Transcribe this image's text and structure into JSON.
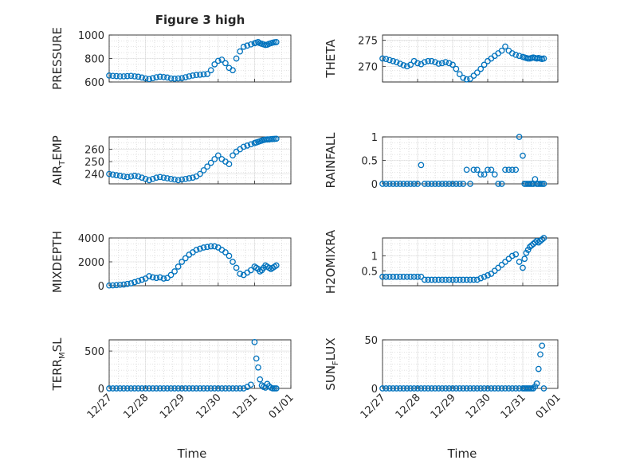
{
  "figure_title": "Figure 3 high",
  "colors": {
    "marker": "#0072BD",
    "frame": "#262626",
    "background": "#ffffff"
  },
  "x_ticks": [
    "12/27",
    "12/28",
    "12/29",
    "12/30",
    "12/31",
    "01/01"
  ],
  "x_label": "Time",
  "chart_data": [
    {
      "type": "scatter",
      "title": "Figure 3 high",
      "ylabel": "PRESSURE",
      "ylim": [
        600,
        1000
      ],
      "yticks": [
        "600",
        "800",
        "1000"
      ],
      "ytick_values": [
        600,
        800,
        1000
      ],
      "xlim": [
        0,
        5
      ],
      "xticks": [
        "12/27",
        "12/28",
        "12/29",
        "12/30",
        "12/31",
        "01/01"
      ],
      "grid": "on",
      "x": [
        0.0,
        0.1,
        0.2,
        0.3,
        0.4,
        0.5,
        0.6,
        0.7,
        0.8,
        0.9,
        1.0,
        1.1,
        1.2,
        1.3,
        1.4,
        1.5,
        1.6,
        1.7,
        1.8,
        1.9,
        2.0,
        2.1,
        2.2,
        2.3,
        2.4,
        2.5,
        2.6,
        2.7,
        2.8,
        2.9,
        3.0,
        3.1,
        3.2,
        3.3,
        3.4,
        3.5,
        3.6,
        3.7,
        3.8,
        3.9,
        4.0,
        4.05,
        4.1,
        4.15,
        4.2,
        4.25,
        4.3,
        4.35,
        4.4,
        4.45,
        4.5,
        4.55,
        4.6
      ],
      "y": [
        655,
        652,
        650,
        648,
        648,
        650,
        652,
        648,
        645,
        638,
        630,
        625,
        632,
        640,
        645,
        642,
        638,
        630,
        628,
        630,
        632,
        640,
        648,
        655,
        660,
        662,
        665,
        668,
        700,
        750,
        780,
        790,
        760,
        720,
        700,
        800,
        860,
        900,
        910,
        920,
        930,
        935,
        940,
        930,
        925,
        920,
        915,
        918,
        925,
        930,
        935,
        938,
        940
      ],
      "name_visible": false
    },
    {
      "type": "scatter",
      "ylabel": "THETA",
      "ylim": [
        267,
        276
      ],
      "yticks": [
        "270",
        "275"
      ],
      "ytick_values": [
        270,
        275
      ],
      "xlim": [
        0,
        5
      ],
      "xticks": [
        "12/27",
        "12/28",
        "12/29",
        "12/30",
        "12/31",
        "01/01"
      ],
      "grid": "on",
      "x": [
        0.0,
        0.1,
        0.2,
        0.3,
        0.4,
        0.5,
        0.6,
        0.7,
        0.8,
        0.9,
        1.0,
        1.1,
        1.2,
        1.3,
        1.4,
        1.5,
        1.6,
        1.7,
        1.8,
        1.9,
        2.0,
        2.1,
        2.2,
        2.3,
        2.4,
        2.5,
        2.6,
        2.7,
        2.8,
        2.9,
        3.0,
        3.1,
        3.2,
        3.3,
        3.4,
        3.5,
        3.6,
        3.7,
        3.8,
        3.9,
        4.0,
        4.05,
        4.1,
        4.15,
        4.2,
        4.25,
        4.3,
        4.35,
        4.4,
        4.45,
        4.5,
        4.55,
        4.6
      ],
      "y": [
        271.5,
        271.4,
        271.2,
        271.0,
        270.8,
        270.5,
        270.2,
        270.0,
        270.3,
        271.0,
        270.6,
        270.4,
        270.8,
        271.0,
        271.0,
        270.8,
        270.5,
        270.6,
        270.8,
        270.6,
        270.3,
        269.5,
        268.5,
        267.8,
        267.5,
        267.6,
        268.2,
        268.8,
        269.5,
        270.3,
        271.0,
        271.5,
        272.0,
        272.5,
        273.0,
        273.8,
        273.0,
        272.5,
        272.2,
        272.0,
        271.8,
        271.7,
        271.6,
        271.5,
        271.5,
        271.6,
        271.7,
        271.6,
        271.5,
        271.6,
        271.5,
        271.4,
        271.5
      ],
      "name_visible": false
    },
    {
      "type": "scatter",
      "ylabel": "AIR_TEMP",
      "ylim": [
        232,
        270
      ],
      "yticks": [
        "240",
        "250",
        "260"
      ],
      "ytick_values": [
        240,
        250,
        260
      ],
      "xlim": [
        0,
        5
      ],
      "xticks": [
        "12/27",
        "12/28",
        "12/29",
        "12/30",
        "12/31",
        "01/01"
      ],
      "grid": "on",
      "x": [
        0.0,
        0.1,
        0.2,
        0.3,
        0.4,
        0.5,
        0.6,
        0.7,
        0.8,
        0.9,
        1.0,
        1.1,
        1.2,
        1.3,
        1.4,
        1.5,
        1.6,
        1.7,
        1.8,
        1.9,
        2.0,
        2.1,
        2.2,
        2.3,
        2.4,
        2.5,
        2.6,
        2.7,
        2.8,
        2.9,
        3.0,
        3.1,
        3.2,
        3.3,
        3.4,
        3.5,
        3.6,
        3.7,
        3.8,
        3.9,
        4.0,
        4.05,
        4.1,
        4.15,
        4.2,
        4.25,
        4.3,
        4.35,
        4.4,
        4.45,
        4.5,
        4.55,
        4.6
      ],
      "y": [
        240,
        239.5,
        239,
        238.5,
        238,
        237.5,
        238,
        238.5,
        238,
        237,
        236,
        235,
        236,
        237,
        237.5,
        237,
        236.5,
        236,
        235.5,
        235,
        235.5,
        236,
        236.5,
        237,
        238,
        240,
        243,
        246,
        249,
        252,
        255,
        252,
        250,
        248,
        255,
        258,
        260,
        262,
        263,
        264,
        265,
        265.5,
        266,
        266.5,
        267,
        267.5,
        267.8,
        268,
        268,
        268.2,
        268.3,
        268.4,
        268.5
      ],
      "name_visible": false
    },
    {
      "type": "scatter",
      "ylabel": "RAINFALL",
      "ylim": [
        0,
        1
      ],
      "yticks": [
        "0",
        "0.5",
        "1"
      ],
      "ytick_values": [
        0,
        0.5,
        1
      ],
      "xlim": [
        0,
        5
      ],
      "xticks": [
        "12/27",
        "12/28",
        "12/29",
        "12/30",
        "12/31",
        "01/01"
      ],
      "grid": "on",
      "x": [
        0.0,
        0.1,
        0.2,
        0.3,
        0.4,
        0.5,
        0.6,
        0.7,
        0.8,
        0.9,
        1.0,
        1.1,
        1.2,
        1.3,
        1.4,
        1.5,
        1.6,
        1.7,
        1.8,
        1.9,
        2.0,
        2.1,
        2.2,
        2.3,
        2.4,
        2.5,
        2.6,
        2.7,
        2.8,
        2.9,
        3.0,
        3.1,
        3.2,
        3.3,
        3.4,
        3.5,
        3.6,
        3.7,
        3.8,
        3.9,
        4.0,
        4.05,
        4.1,
        4.15,
        4.2,
        4.25,
        4.3,
        4.35,
        4.4,
        4.45,
        4.5,
        4.55,
        4.6
      ],
      "y": [
        0,
        0,
        0,
        0,
        0,
        0,
        0,
        0,
        0,
        0,
        0,
        0.4,
        0,
        0,
        0,
        0,
        0,
        0,
        0,
        0,
        0,
        0,
        0,
        0,
        0.3,
        0,
        0.3,
        0.3,
        0.2,
        0.2,
        0.3,
        0.3,
        0.2,
        0,
        0,
        0.3,
        0.3,
        0.3,
        0.3,
        1.0,
        0.6,
        0,
        0,
        0,
        0,
        0,
        0,
        0.1,
        0,
        0,
        0,
        0,
        0
      ],
      "name_visible": false
    },
    {
      "type": "scatter",
      "ylabel": "MIXDEPTH",
      "ylim": [
        0,
        4000
      ],
      "yticks": [
        "0",
        "2000",
        "4000"
      ],
      "ytick_values": [
        0,
        2000,
        4000
      ],
      "xlim": [
        0,
        5
      ],
      "xticks": [
        "12/27",
        "12/28",
        "12/29",
        "12/30",
        "12/31",
        "01/01"
      ],
      "grid": "on",
      "x": [
        0.0,
        0.1,
        0.2,
        0.3,
        0.4,
        0.5,
        0.6,
        0.7,
        0.8,
        0.9,
        1.0,
        1.1,
        1.2,
        1.3,
        1.4,
        1.5,
        1.6,
        1.7,
        1.8,
        1.9,
        2.0,
        2.1,
        2.2,
        2.3,
        2.4,
        2.5,
        2.6,
        2.7,
        2.8,
        2.9,
        3.0,
        3.1,
        3.2,
        3.3,
        3.4,
        3.5,
        3.6,
        3.7,
        3.8,
        3.9,
        4.0,
        4.05,
        4.1,
        4.15,
        4.2,
        4.25,
        4.3,
        4.35,
        4.4,
        4.45,
        4.5,
        4.55,
        4.6
      ],
      "y": [
        20,
        30,
        50,
        80,
        100,
        150,
        200,
        300,
        400,
        500,
        600,
        800,
        700,
        650,
        700,
        600,
        650,
        900,
        1200,
        1600,
        2000,
        2300,
        2600,
        2800,
        3000,
        3100,
        3200,
        3250,
        3300,
        3300,
        3200,
        3000,
        2800,
        2500,
        2000,
        1500,
        1000,
        900,
        1100,
        1300,
        1600,
        1500,
        1400,
        1200,
        1300,
        1500,
        1700,
        1600,
        1500,
        1400,
        1500,
        1600,
        1700
      ],
      "name_visible": false
    },
    {
      "type": "scatter",
      "ylabel": "H2OMIXRA",
      "ylim": [
        0,
        1.6
      ],
      "yticks": [
        "0.5",
        "1"
      ],
      "ytick_values": [
        0.5,
        1
      ],
      "xlim": [
        0,
        5
      ],
      "xticks": [
        "12/27",
        "12/28",
        "12/29",
        "12/30",
        "12/31",
        "01/01"
      ],
      "grid": "on",
      "x": [
        0.0,
        0.1,
        0.2,
        0.3,
        0.4,
        0.5,
        0.6,
        0.7,
        0.8,
        0.9,
        1.0,
        1.1,
        1.2,
        1.3,
        1.4,
        1.5,
        1.6,
        1.7,
        1.8,
        1.9,
        2.0,
        2.1,
        2.2,
        2.3,
        2.4,
        2.5,
        2.6,
        2.7,
        2.8,
        2.9,
        3.0,
        3.1,
        3.2,
        3.3,
        3.4,
        3.5,
        3.6,
        3.7,
        3.8,
        3.9,
        4.0,
        4.05,
        4.1,
        4.15,
        4.2,
        4.25,
        4.3,
        4.35,
        4.4,
        4.45,
        4.5,
        4.55,
        4.6
      ],
      "y": [
        0.3,
        0.3,
        0.3,
        0.3,
        0.3,
        0.3,
        0.3,
        0.3,
        0.3,
        0.3,
        0.3,
        0.3,
        0.2,
        0.2,
        0.2,
        0.2,
        0.2,
        0.2,
        0.2,
        0.2,
        0.2,
        0.2,
        0.2,
        0.2,
        0.2,
        0.2,
        0.2,
        0.2,
        0.25,
        0.3,
        0.35,
        0.4,
        0.5,
        0.6,
        0.7,
        0.8,
        0.9,
        1.0,
        1.05,
        0.8,
        0.6,
        0.9,
        1.1,
        1.2,
        1.3,
        1.35,
        1.4,
        1.45,
        1.5,
        1.45,
        1.5,
        1.55,
        1.6
      ],
      "name_visible": false
    },
    {
      "type": "scatter",
      "ylabel": "TERR_MSL",
      "ylim": [
        0,
        650
      ],
      "yticks": [
        "0",
        "500"
      ],
      "ytick_values": [
        0,
        500
      ],
      "xlim": [
        0,
        5
      ],
      "xticks": [
        "12/27",
        "12/28",
        "12/29",
        "12/30",
        "12/31",
        "01/01"
      ],
      "grid": "on",
      "x": [
        0.0,
        0.1,
        0.2,
        0.3,
        0.4,
        0.5,
        0.6,
        0.7,
        0.8,
        0.9,
        1.0,
        1.1,
        1.2,
        1.3,
        1.4,
        1.5,
        1.6,
        1.7,
        1.8,
        1.9,
        2.0,
        2.1,
        2.2,
        2.3,
        2.4,
        2.5,
        2.6,
        2.7,
        2.8,
        2.9,
        3.0,
        3.1,
        3.2,
        3.3,
        3.4,
        3.5,
        3.6,
        3.7,
        3.8,
        3.9,
        4.0,
        4.05,
        4.1,
        4.15,
        4.2,
        4.25,
        4.3,
        4.35,
        4.4,
        4.45,
        4.5,
        4.55,
        4.6
      ],
      "y": [
        0,
        0,
        0,
        0,
        0,
        0,
        0,
        0,
        0,
        0,
        0,
        0,
        0,
        0,
        0,
        0,
        0,
        0,
        0,
        0,
        0,
        0,
        0,
        0,
        0,
        0,
        0,
        0,
        0,
        0,
        0,
        0,
        0,
        0,
        0,
        0,
        0,
        0,
        20,
        50,
        620,
        400,
        280,
        120,
        40,
        20,
        10,
        60,
        30,
        10,
        0,
        0,
        0
      ],
      "name_visible": false
    },
    {
      "type": "scatter",
      "ylabel": "SUN_FLUX",
      "ylim": [
        0,
        50
      ],
      "yticks": [
        "0",
        "50"
      ],
      "ytick_values": [
        0,
        50
      ],
      "xlim": [
        0,
        5
      ],
      "xticks": [
        "12/27",
        "12/28",
        "12/29",
        "12/30",
        "12/31",
        "01/01"
      ],
      "grid": "on",
      "x": [
        0.0,
        0.1,
        0.2,
        0.3,
        0.4,
        0.5,
        0.6,
        0.7,
        0.8,
        0.9,
        1.0,
        1.1,
        1.2,
        1.3,
        1.4,
        1.5,
        1.6,
        1.7,
        1.8,
        1.9,
        2.0,
        2.1,
        2.2,
        2.3,
        2.4,
        2.5,
        2.6,
        2.7,
        2.8,
        2.9,
        3.0,
        3.1,
        3.2,
        3.3,
        3.4,
        3.5,
        3.6,
        3.7,
        3.8,
        3.9,
        4.0,
        4.05,
        4.1,
        4.15,
        4.2,
        4.25,
        4.3,
        4.35,
        4.4,
        4.45,
        4.5,
        4.55,
        4.6
      ],
      "y": [
        0,
        0,
        0,
        0,
        0,
        0,
        0,
        0,
        0,
        0,
        0,
        0,
        0,
        0,
        0,
        0,
        0,
        0,
        0,
        0,
        0,
        0,
        0,
        0,
        0,
        0,
        0,
        0,
        0,
        0,
        0,
        0,
        0,
        0,
        0,
        0,
        0,
        0,
        0,
        0,
        0,
        0,
        0,
        0,
        0,
        0,
        0,
        2,
        5,
        20,
        35,
        44,
        0
      ],
      "name_visible": false
    }
  ]
}
